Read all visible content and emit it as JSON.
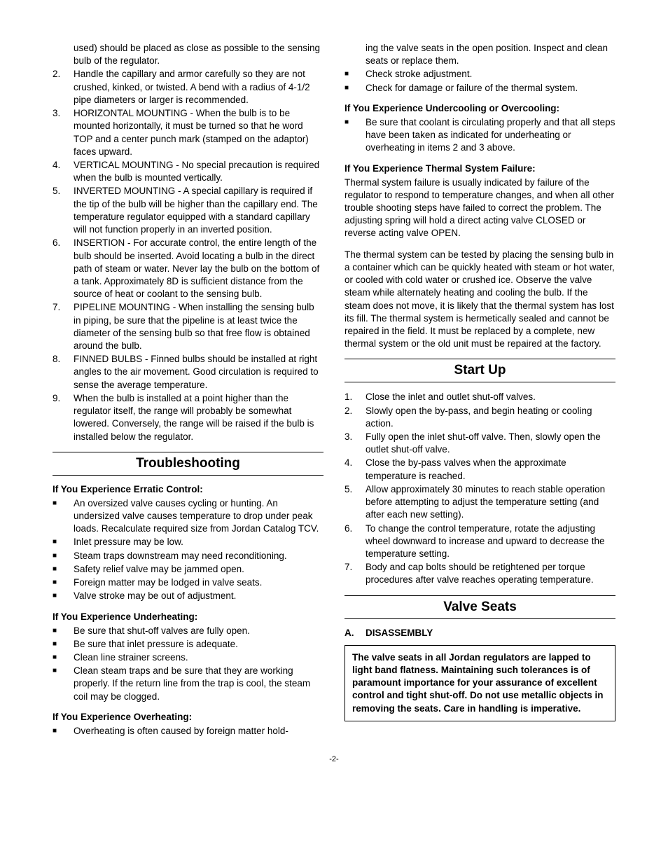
{
  "left": {
    "numList": [
      {
        "n": "",
        "t": "used) should be placed as close as possible to the sensing bulb of the regulator."
      },
      {
        "n": "2.",
        "t": "Handle the capillary and armor carefully so they are not crushed, kinked, or twisted. A bend with a radius of 4-1/2 pipe diameters or larger is recommended."
      },
      {
        "n": "3.",
        "t": "HORIZONTAL MOUNTING - When the bulb is to be mounted horizontally, it must be turned so that he word TOP and a center punch mark (stamped on the adaptor) faces upward."
      },
      {
        "n": "4.",
        "t": "VERTICAL MOUNTING - No special precaution is required when the bulb is mounted vertically."
      },
      {
        "n": "5.",
        "t": "INVERTED MOUNTING - A special capillary is required if the tip of the bulb will be higher than the capillary end. The temperature regulator equipped with a standard capillary will not function properly in an inverted position."
      },
      {
        "n": "6.",
        "t": "INSERTION - For accurate control, the entire length of the bulb should be inserted. Avoid locating a bulb in the direct path of steam or water. Never lay the bulb on the bottom of a tank. Approximately 8D is sufficient distance from the source of heat or coolant to the sensing bulb."
      },
      {
        "n": "7.",
        "t": "PIPELINE MOUNTING - When installing the sensing bulb in piping, be sure that the pipeline is at least twice the diameter of the sensing bulb so that free flow is obtained around the bulb."
      },
      {
        "n": "8.",
        "t": "FINNED BULBS - Finned bulbs should be installed at right angles to the air movement. Good circulation is required to sense the average temperature."
      },
      {
        "n": "9.",
        "t": "When the bulb is installed at a point higher than the regulator itself, the range will probably be somewhat lowered. Conversely, the range will be raised if the bulb is installed below the regulator."
      }
    ],
    "troubleshootingHeading": "Troubleshooting",
    "erraticHeading": "If You Experience Erratic Control:",
    "erraticList": [
      "An oversized valve causes cycling or hunting. An undersized valve causes temperature to drop under peak loads. Recalculate required size from Jordan Catalog TCV.",
      "Inlet pressure may be low.",
      "Steam traps downstream may need reconditioning.",
      "Safety relief valve may be jammed open.",
      "Foreign matter may be lodged in valve seats.",
      "Valve stroke may be out of adjustment."
    ],
    "underheatHeading": "If You Experience Underheating:",
    "underheatList": [
      "Be sure that shut-off valves are fully open.",
      "Be sure that inlet pressure is adequate.",
      "Clean line strainer screens.",
      "Clean steam traps and be sure that they are working properly.  If the return line from the trap is cool, the steam coil may be clogged."
    ],
    "overheatHeading": "If You Experience Overheating:",
    "overheatList": [
      "Overheating is often caused by foreign matter hold-"
    ]
  },
  "right": {
    "contList": [
      "ing the valve seats in the open position. Inspect and clean seats or replace them.",
      "Check stroke adjustment.",
      "Check for damage or failure of the thermal system."
    ],
    "undercoolHeading": "If You Experience Undercooling or Overcooling:",
    "undercoolList": [
      "Be sure that coolant is circulating properly and that all steps have been taken as indicated for underheating or overheating in items 2 and 3 above."
    ],
    "thermalFailHeading": "If You Experience Thermal System Failure:",
    "thermalPara1": "Thermal system failure is usually indicated by failure of the regulator to respond to temperature changes, and when all other trouble shooting steps have failed to correct the problem. The adjusting spring will hold a direct acting valve CLOSED or reverse acting valve OPEN.",
    "thermalPara2": "The thermal system can be tested by placing the sensing bulb in a container which can be quickly heated with steam or hot water, or cooled with cold water or crushed ice. Observe the valve steam while alternately heating and cooling the bulb. If the steam does not move, it is likely that the thermal system has lost its fill. The thermal system is hermetically sealed and cannot be repaired in the field. It must be replaced by a complete, new thermal system or the old unit must be repaired at the factory.",
    "startupHeading": "Start Up",
    "startupList": [
      {
        "n": "1.",
        "t": "Close the inlet and outlet shut-off valves."
      },
      {
        "n": "2.",
        "t": "Slowly open the by-pass, and begin heating or cooling action."
      },
      {
        "n": "3.",
        "t": "Fully open the inlet shut-off valve. Then, slowly open the outlet shut-off valve."
      },
      {
        "n": "4.",
        "t": "Close the by-pass valves when the approximate temperature is reached."
      },
      {
        "n": "5.",
        "t": "Allow approximately 30 minutes to reach stable operation before attempting to adjust the temperature setting (and after each new setting)."
      },
      {
        "n": "6.",
        "t": "To change the control temperature, rotate the adjusting wheel downward to increase and upward to decrease the temperature setting."
      },
      {
        "n": "7.",
        "t": "Body and cap bolts should be retightened per torque procedures after valve reaches operating temperature."
      }
    ],
    "valveSeatsHeading": "Valve Seats",
    "disassemblyLetter": "A.",
    "disassemblyLabel": "DISASSEMBLY",
    "boxNote": "The valve seats in all Jordan regulators are lapped to light band flatness. Maintaining such tolerances is of paramount importance for your assurance of excellent control and tight shut-off. Do not use metallic objects in removing the seats. Care in handling is imperative."
  },
  "pageNum": "-2-"
}
